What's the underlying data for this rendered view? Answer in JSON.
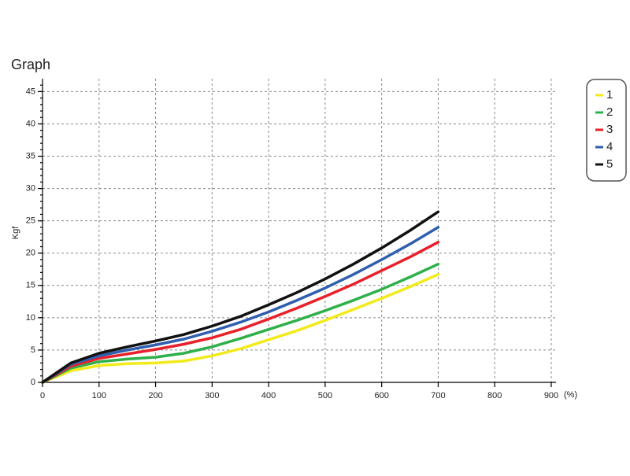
{
  "chart_data": {
    "type": "line",
    "title": "Graph",
    "y_label": "Kgf",
    "x_label": "(%)",
    "x": [
      0,
      50,
      100,
      150,
      200,
      250,
      300,
      350,
      400,
      450,
      500,
      550,
      600,
      650,
      700
    ],
    "series": [
      {
        "name": "1",
        "color": "#f2ea1b",
        "values": [
          0,
          1.8,
          2.6,
          2.9,
          3.0,
          3.3,
          4.1,
          5.2,
          6.6,
          8.0,
          9.6,
          11.3,
          13.0,
          14.8,
          16.7
        ]
      },
      {
        "name": "2",
        "color": "#2fb04a",
        "values": [
          0,
          2.2,
          3.2,
          3.6,
          3.9,
          4.5,
          5.5,
          6.8,
          8.2,
          9.6,
          11.1,
          12.7,
          14.4,
          16.3,
          18.3
        ]
      },
      {
        "name": "3",
        "color": "#e8202a",
        "values": [
          0,
          2.5,
          3.7,
          4.4,
          5.1,
          5.9,
          6.9,
          8.2,
          9.8,
          11.5,
          13.3,
          15.2,
          17.3,
          19.4,
          21.7
        ]
      },
      {
        "name": "4",
        "color": "#2f5fae",
        "values": [
          0,
          2.8,
          4.1,
          5.0,
          5.8,
          6.7,
          7.9,
          9.3,
          10.9,
          12.7,
          14.6,
          16.7,
          19.0,
          21.4,
          24.0
        ]
      },
      {
        "name": "5",
        "color": "#111111",
        "values": [
          0,
          3.0,
          4.5,
          5.5,
          6.4,
          7.4,
          8.7,
          10.2,
          12.0,
          13.9,
          16.0,
          18.3,
          20.8,
          23.5,
          26.4
        ]
      }
    ],
    "xlim": [
      0,
      900
    ],
    "xticks": [
      0,
      100,
      200,
      300,
      400,
      500,
      600,
      700,
      800,
      900
    ],
    "ylim": [
      0,
      47
    ],
    "yticks": [
      0,
      5,
      10,
      15,
      20,
      25,
      30,
      35,
      40,
      45
    ],
    "grid": true,
    "legend": "right"
  }
}
